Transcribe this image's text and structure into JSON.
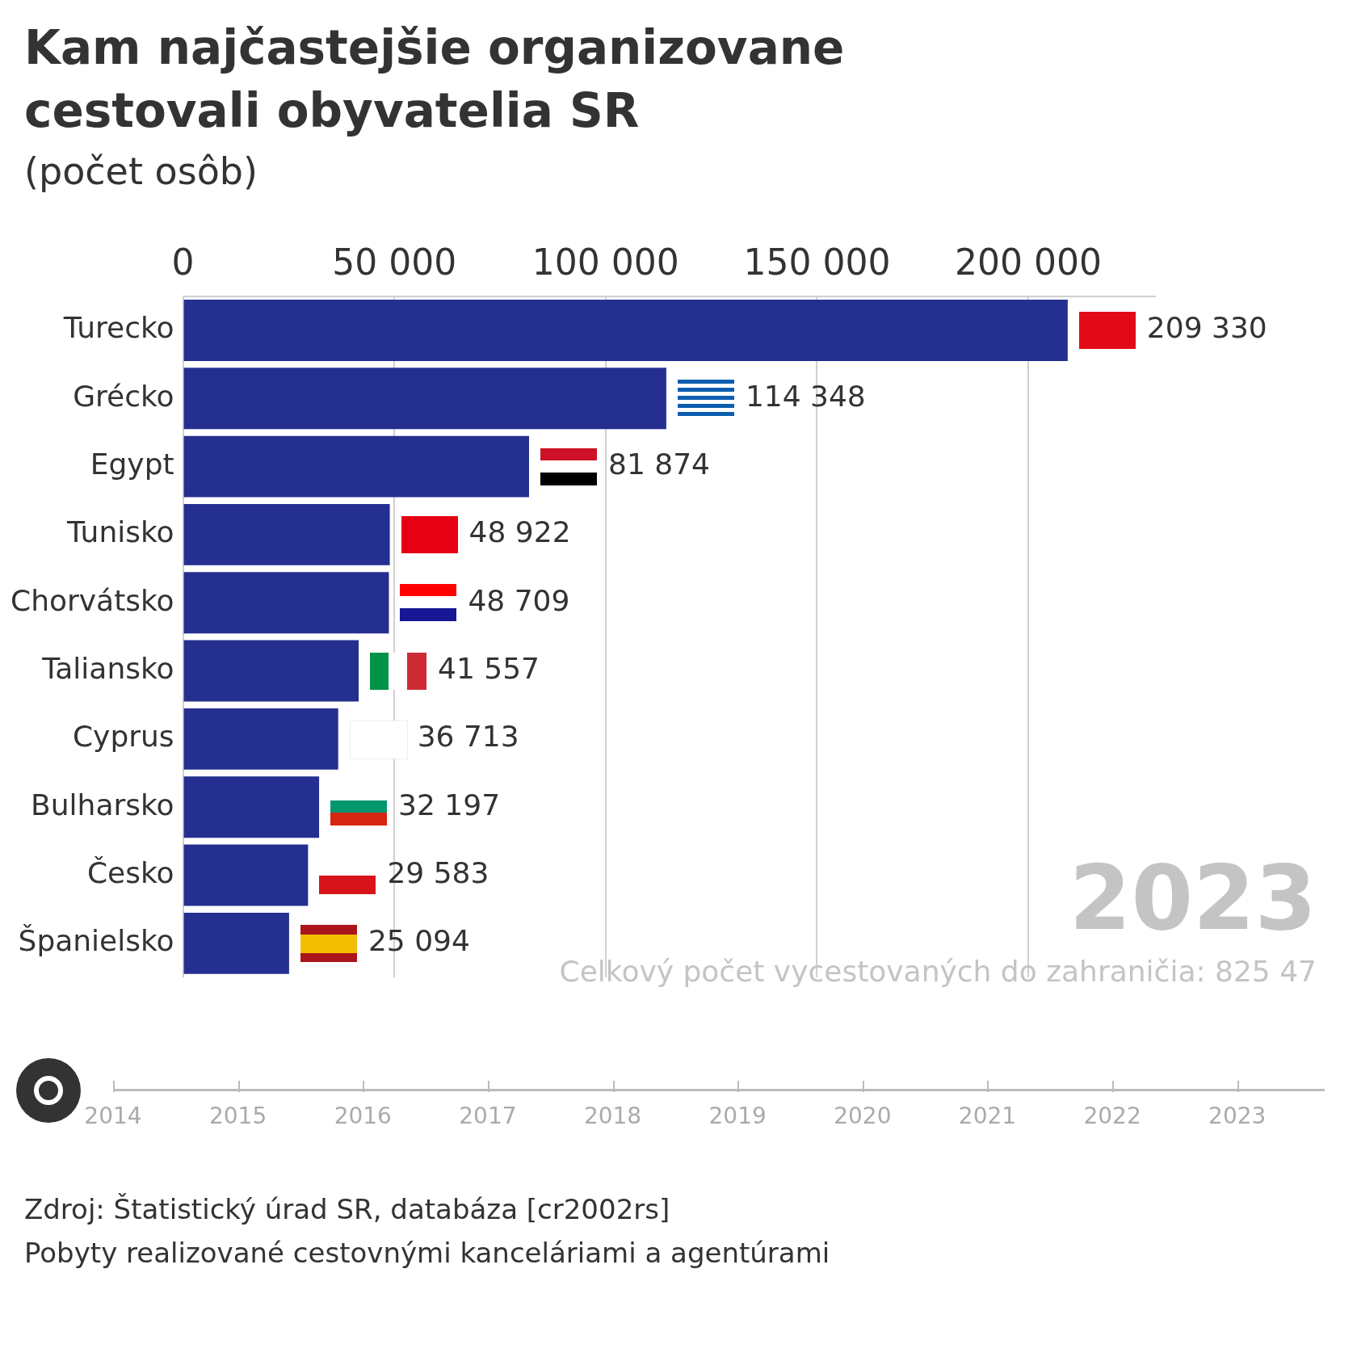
{
  "chart_data": {
    "type": "bar",
    "orientation": "horizontal",
    "title": "Kam najčastejšie organizovane cestovali obyvatelia SR",
    "subtitle": "(počet osôb)",
    "categories": [
      "Turecko",
      "Grécko",
      "Egypt",
      "Tunisko",
      "Chorvátsko",
      "Taliansko",
      "Cyprus",
      "Bulharsko",
      "Česko",
      "Španielsko"
    ],
    "values": [
      209330,
      114348,
      81874,
      48922,
      48709,
      41557,
      36713,
      32197,
      29583,
      25094
    ],
    "value_labels": [
      "209 330",
      "114 348",
      "81 874",
      "48 922",
      "48 709",
      "41 557",
      "36 713",
      "32 197",
      "29 583",
      "25 094"
    ],
    "color": "#252f8f",
    "xlim": [
      0,
      230000
    ],
    "xticks": [
      {
        "value": 0,
        "label": "0"
      },
      {
        "value": 50000,
        "label": "50 000"
      },
      {
        "value": 100000,
        "label": "100 000"
      },
      {
        "value": 150000,
        "label": "150 000"
      },
      {
        "value": 200000,
        "label": "200 000"
      }
    ],
    "grid": true,
    "annotations": [
      "2023",
      "Celkový počet vycestovaných do zahraničia: 825 47",
      "Zdroj: Štatistický úrad SR, databáza [cr2002rs]",
      "Pobyty realizované cestovnými kanceláriami a agentúrami",
      "2014",
      "2015",
      "2016",
      "2017",
      "2018",
      "2019",
      "2020",
      "2021",
      "2022",
      "2023"
    ]
  }
}
